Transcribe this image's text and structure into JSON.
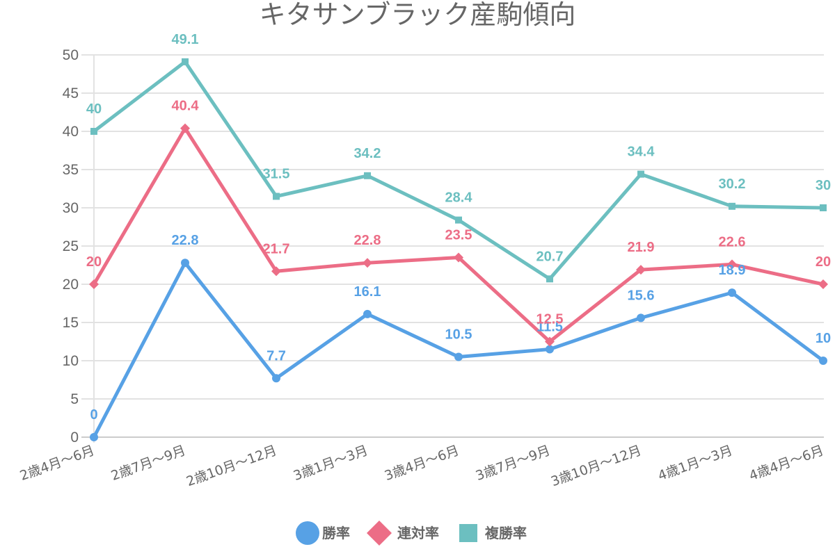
{
  "chart_data": {
    "type": "line",
    "title": "キタサンブラック産駒傾向",
    "xlabel": "",
    "ylabel": "",
    "ylim": [
      0,
      50
    ],
    "yticks": [
      0,
      5,
      10,
      15,
      20,
      25,
      30,
      35,
      40,
      45,
      50
    ],
    "grid": true,
    "legend_position": "bottom",
    "categories": [
      "2歳4月～6月",
      "2歳7月～9月",
      "2歳10月～12月",
      "3歳1月～3月",
      "3歳4月～6月",
      "3歳7月～9月",
      "3歳10月～12月",
      "4歳1月～3月",
      "4歳4月～6月"
    ],
    "series": [
      {
        "name": "勝率",
        "marker": "circle",
        "color": "#57a1e5",
        "values": [
          0,
          22.8,
          7.7,
          16.1,
          10.5,
          11.5,
          15.6,
          18.9,
          10
        ]
      },
      {
        "name": "連対率",
        "marker": "diamond",
        "color": "#ec6d86",
        "values": [
          20,
          40.4,
          21.7,
          22.8,
          23.5,
          12.5,
          21.9,
          22.6,
          20
        ]
      },
      {
        "name": "複勝率",
        "marker": "square",
        "color": "#6cbfc0",
        "values": [
          40,
          49.1,
          31.5,
          34.2,
          28.4,
          20.7,
          34.4,
          30.2,
          30
        ]
      }
    ]
  }
}
